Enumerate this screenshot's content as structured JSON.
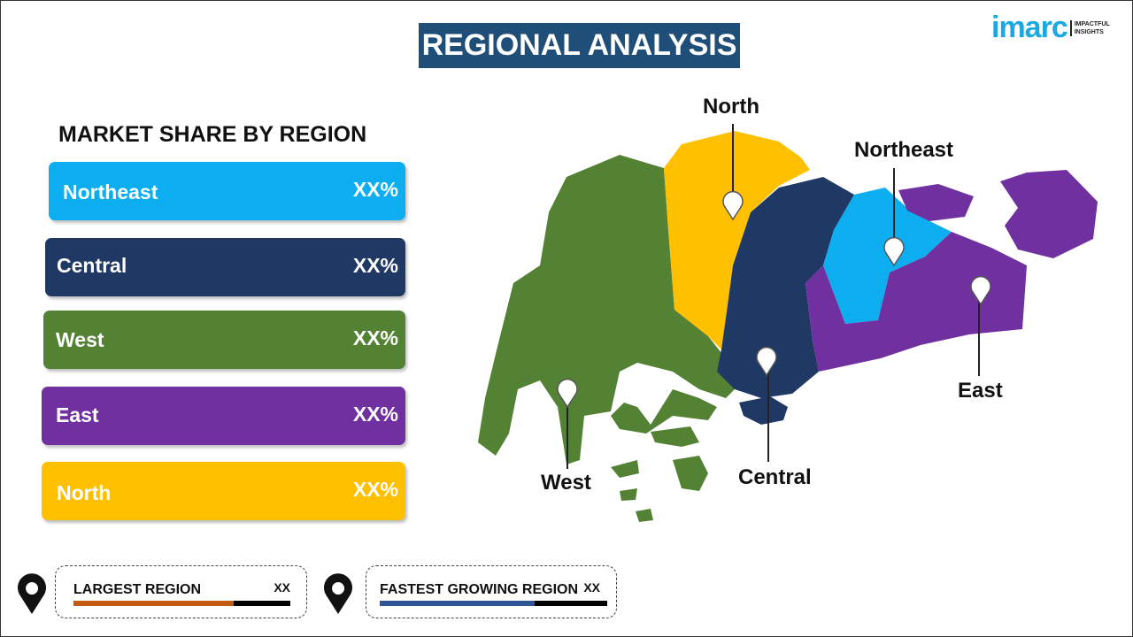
{
  "header": {
    "title": "REGIONAL ANALYSIS",
    "logo_text": "imarc",
    "logo_tagline": "IMPACTFUL INSIGHTS"
  },
  "panel": {
    "title": "MARKET SHARE BY REGION",
    "bars": [
      {
        "label": "Northeast",
        "value": "XX%",
        "color": "#0DAEEF"
      },
      {
        "label": "Central",
        "value": "XX%",
        "color": "#1F3864"
      },
      {
        "label": "West",
        "value": "XX%",
        "color": "#548235"
      },
      {
        "label": "East",
        "value": "XX%",
        "color": "#7030A0"
      },
      {
        "label": "North",
        "value": "XX%",
        "color": "#FFC000"
      }
    ]
  },
  "map": {
    "labels": {
      "north": "North",
      "northeast": "Northeast",
      "east": "East",
      "central": "Central",
      "west": "West"
    }
  },
  "footer": {
    "largest": {
      "label": "LARGEST REGION",
      "value": "XX",
      "fill_percent": 74,
      "color": "#C55A11"
    },
    "fastest": {
      "label": "FASTEST GROWING REGION",
      "value": "XX",
      "fill_percent": 68,
      "color": "#2F5597"
    }
  }
}
